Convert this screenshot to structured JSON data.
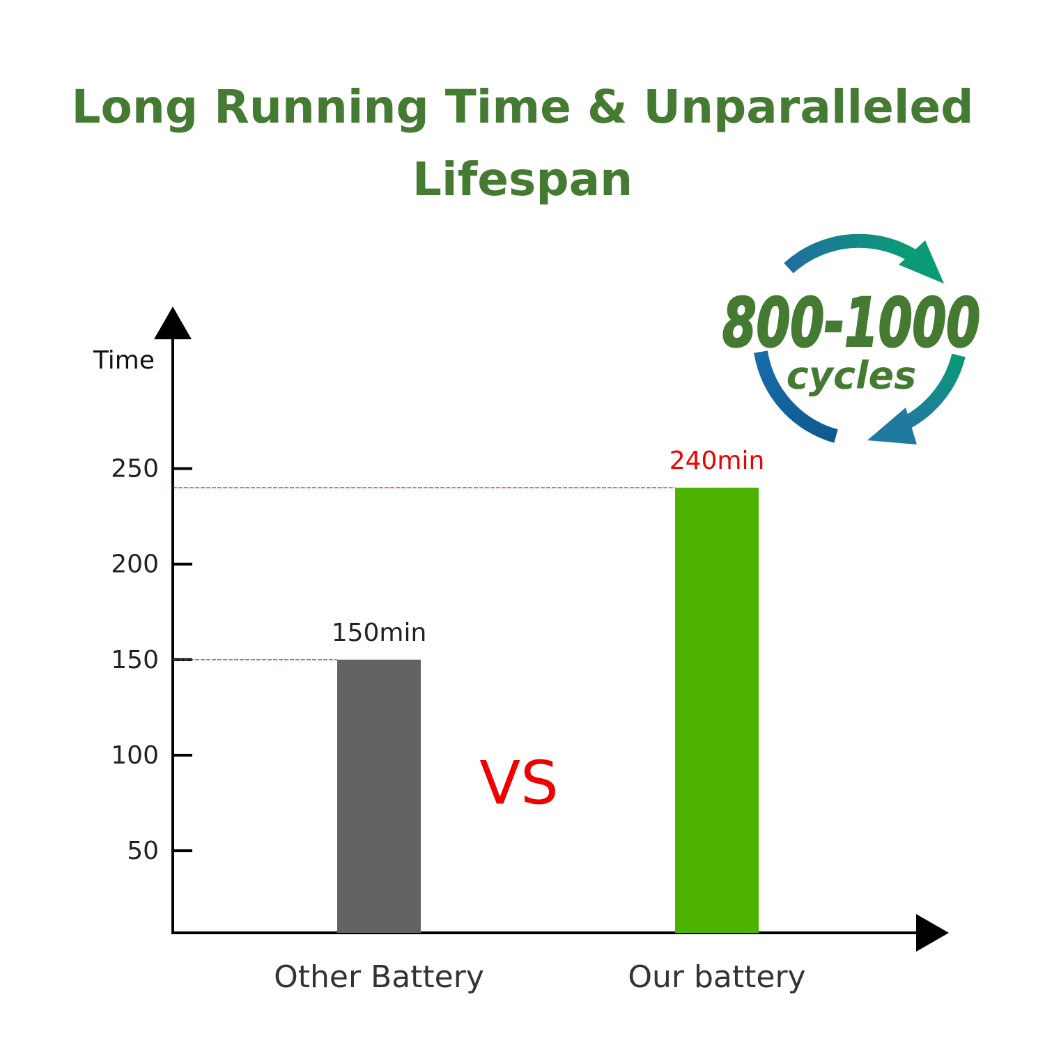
{
  "chart_data": {
    "type": "bar",
    "title": "Long Running Time & Unparalleled Lifespan",
    "y_label": "Time",
    "categories": [
      "Other Battery",
      "Our battery"
    ],
    "values": [
      150,
      240
    ],
    "value_labels": [
      "150min",
      "240min"
    ],
    "colors": [
      "#636363",
      "#4cb200"
    ],
    "value_label_colors": [
      "#222222",
      "#ee0000"
    ],
    "ylim": [
      7,
      333
    ],
    "yticks": [
      50,
      100,
      150,
      200,
      250
    ],
    "guide_lines": true,
    "guide_color": "#cc2222",
    "annotations": {
      "vs": "VS",
      "badge_number": "800-1000",
      "badge_unit": "cycles"
    }
  }
}
